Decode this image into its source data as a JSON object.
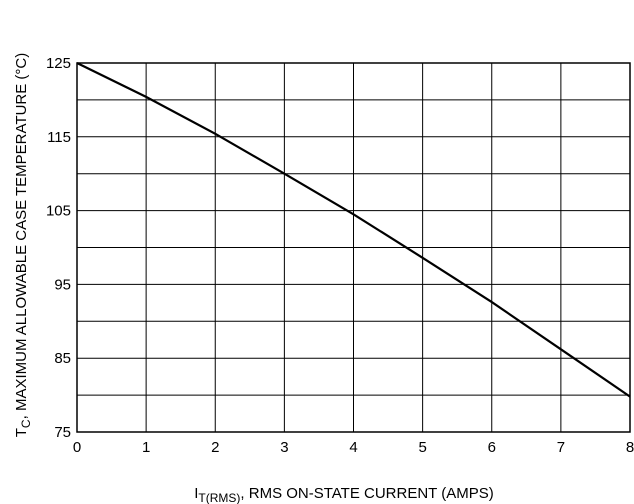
{
  "chart_data": {
    "type": "line",
    "x": [
      0,
      1,
      2,
      3,
      4,
      5,
      6,
      7,
      8
    ],
    "series": [
      {
        "values": [
          125,
          120.4,
          115.4,
          110,
          104.5,
          98.6,
          92.6,
          86.2,
          79.8
        ]
      }
    ],
    "xlim": [
      0,
      8
    ],
    "ylim": [
      75,
      125
    ],
    "x_ticks": [
      "0",
      "1",
      "2",
      "3",
      "4",
      "5",
      "6",
      "7",
      "8"
    ],
    "y_ticks": [
      "75",
      "85",
      "95",
      "105",
      "115",
      "125"
    ],
    "y_tick_values": [
      75,
      85,
      95,
      105,
      115,
      125
    ],
    "grid": true,
    "grid_y_step": 5,
    "xlabel": {
      "main": "I",
      "sub": "T(RMS)",
      "rest": ", RMS ON-STATE CURRENT (AMPS)"
    },
    "ylabel": {
      "main": "T",
      "sub": "C",
      "rest": ", MAXIMUM ALLOWABLE CASE TEMPERATURE (°C)"
    }
  }
}
